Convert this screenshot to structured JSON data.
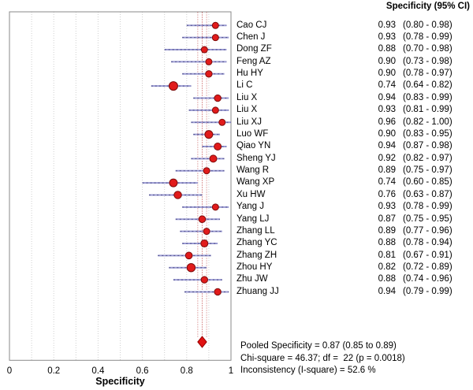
{
  "header": {
    "column_header": "Specificity (95% CI)"
  },
  "summary": {
    "line1": "Pooled Specificity = 0.87 (0.85 to 0.89)",
    "line2": "Chi-square = 46.37; df =  22 (p = 0.0018)",
    "line3": "Inconsistency (I-square) = 52.6 %"
  },
  "colors": {
    "marker_fill": "#e11b1b",
    "marker_stroke": "#7d0b0b",
    "ci_line": "#9a9ad2",
    "ci_line_core": "#3a3a78",
    "pooled_bound_line": "#cc6666",
    "pooled_center_line": "#bb3333",
    "diamond_fill": "#e01111",
    "diamond_stroke": "#990000",
    "gridline": "#cfcfcf",
    "frame": "#8a8a8a",
    "text": "#000000"
  },
  "chart_data": {
    "type": "forest",
    "title": "",
    "xlabel": "Specificity",
    "xlim": [
      0,
      1
    ],
    "grid": "vertical-dotted",
    "x_ticks": [
      {
        "value": 0,
        "label": "0"
      },
      {
        "value": 0.2,
        "label": "0.2"
      },
      {
        "value": 0.4,
        "label": "0.4"
      },
      {
        "value": 0.6,
        "label": "0.6"
      },
      {
        "value": 0.8,
        "label": "0.8"
      },
      {
        "value": 1,
        "label": "1"
      }
    ],
    "gridline_values": [
      0.1,
      0.2,
      0.3,
      0.4,
      0.5,
      0.6,
      0.7,
      0.8,
      0.9
    ],
    "studies": [
      {
        "name": "Cao CJ",
        "value": 0.93,
        "ci_low": 0.8,
        "ci_high": 0.98,
        "value_text": "0.93",
        "ci_text": "(0.80 - 0.98)",
        "marker_r": 4.0
      },
      {
        "name": "Chen J",
        "value": 0.93,
        "ci_low": 0.78,
        "ci_high": 0.99,
        "value_text": "0.93",
        "ci_text": "(0.78 - 0.99)",
        "marker_r": 4.0
      },
      {
        "name": "Dong ZF",
        "value": 0.88,
        "ci_low": 0.7,
        "ci_high": 0.98,
        "value_text": "0.88",
        "ci_text": "(0.70 - 0.98)",
        "marker_r": 4.0
      },
      {
        "name": "Feng AZ",
        "value": 0.9,
        "ci_low": 0.73,
        "ci_high": 0.98,
        "value_text": "0.90",
        "ci_text": "(0.73 - 0.98)",
        "marker_r": 4.0
      },
      {
        "name": "Hu HY",
        "value": 0.9,
        "ci_low": 0.78,
        "ci_high": 0.97,
        "value_text": "0.90",
        "ci_text": "(0.78 - 0.97)",
        "marker_r": 4.2
      },
      {
        "name": "Li C",
        "value": 0.74,
        "ci_low": 0.64,
        "ci_high": 0.82,
        "value_text": "0.74",
        "ci_text": "(0.64 - 0.82)",
        "marker_r": 5.5
      },
      {
        "name": "Liu X",
        "value": 0.94,
        "ci_low": 0.83,
        "ci_high": 0.99,
        "value_text": "0.94",
        "ci_text": "(0.83 - 0.99)",
        "marker_r": 4.2
      },
      {
        "name": "Liu X",
        "value": 0.93,
        "ci_low": 0.81,
        "ci_high": 0.99,
        "value_text": "0.93",
        "ci_text": "(0.81 - 0.99)",
        "marker_r": 4.0
      },
      {
        "name": "Liu XJ",
        "value": 0.96,
        "ci_low": 0.82,
        "ci_high": 1.0,
        "value_text": "0.96",
        "ci_text": "(0.82 - 1.00)",
        "marker_r": 4.0
      },
      {
        "name": "Luo WF",
        "value": 0.9,
        "ci_low": 0.83,
        "ci_high": 0.95,
        "value_text": "0.90",
        "ci_text": "(0.83 - 0.95)",
        "marker_r": 5.0
      },
      {
        "name": "Qiao YN",
        "value": 0.94,
        "ci_low": 0.87,
        "ci_high": 0.98,
        "value_text": "0.94",
        "ci_text": "(0.87 - 0.98)",
        "marker_r": 4.5
      },
      {
        "name": "Sheng YJ",
        "value": 0.92,
        "ci_low": 0.82,
        "ci_high": 0.97,
        "value_text": "0.92",
        "ci_text": "(0.82 - 0.97)",
        "marker_r": 4.5
      },
      {
        "name": "Wang R",
        "value": 0.89,
        "ci_low": 0.75,
        "ci_high": 0.97,
        "value_text": "0.89",
        "ci_text": "(0.75 - 0.97)",
        "marker_r": 4.0
      },
      {
        "name": "Wang XP",
        "value": 0.74,
        "ci_low": 0.6,
        "ci_high": 0.85,
        "value_text": "0.74",
        "ci_text": "(0.60 - 0.85)",
        "marker_r": 5.0
      },
      {
        "name": "Xu HW",
        "value": 0.76,
        "ci_low": 0.63,
        "ci_high": 0.87,
        "value_text": "0.76",
        "ci_text": "(0.63 - 0.87)",
        "marker_r": 4.7
      },
      {
        "name": "Yang J",
        "value": 0.93,
        "ci_low": 0.78,
        "ci_high": 0.99,
        "value_text": "0.93",
        "ci_text": "(0.78 - 0.99)",
        "marker_r": 4.0
      },
      {
        "name": "Yang LJ",
        "value": 0.87,
        "ci_low": 0.75,
        "ci_high": 0.95,
        "value_text": "0.87",
        "ci_text": "(0.75 - 0.95)",
        "marker_r": 4.3
      },
      {
        "name": "Zhang LL",
        "value": 0.89,
        "ci_low": 0.77,
        "ci_high": 0.96,
        "value_text": "0.89",
        "ci_text": "(0.77 - 0.96)",
        "marker_r": 4.0
      },
      {
        "name": "Zhang YC",
        "value": 0.88,
        "ci_low": 0.78,
        "ci_high": 0.94,
        "value_text": "0.88",
        "ci_text": "(0.78 - 0.94)",
        "marker_r": 4.5
      },
      {
        "name": "Zhang ZH",
        "value": 0.81,
        "ci_low": 0.67,
        "ci_high": 0.91,
        "value_text": "0.81",
        "ci_text": "(0.67 - 0.91)",
        "marker_r": 4.3
      },
      {
        "name": "Zhou HY",
        "value": 0.82,
        "ci_low": 0.72,
        "ci_high": 0.89,
        "value_text": "0.82",
        "ci_text": "(0.72 - 0.89)",
        "marker_r": 5.2
      },
      {
        "name": "Zhu JW",
        "value": 0.88,
        "ci_low": 0.74,
        "ci_high": 0.96,
        "value_text": "0.88",
        "ci_text": "(0.74 - 0.96)",
        "marker_r": 4.2
      },
      {
        "name": "Zhuang JJ",
        "value": 0.94,
        "ci_low": 0.79,
        "ci_high": 0.99,
        "value_text": "0.94",
        "ci_text": "(0.79 - 0.99)",
        "marker_r": 4.2
      }
    ],
    "pooled": {
      "value": 0.87,
      "ci_low": 0.85,
      "ci_high": 0.89
    }
  }
}
